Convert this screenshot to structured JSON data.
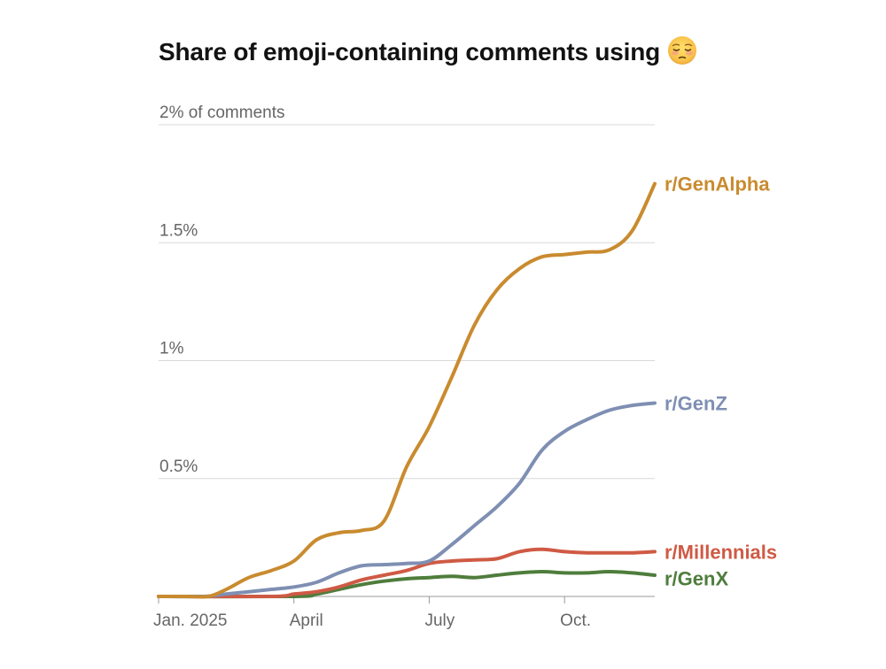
{
  "title": "Share of emoji-containing comments using",
  "title_icon": "pleading-face-emoji",
  "chart_data": {
    "type": "line",
    "title": "Share of emoji-containing comments using",
    "xlabel": "",
    "ylabel": "",
    "x_unit": "months since Jan. 2025",
    "xlim": [
      0,
      11
    ],
    "ylim": [
      0,
      2
    ],
    "y_ticks": [
      {
        "value": 0.5,
        "label": "0.5%"
      },
      {
        "value": 1,
        "label": "1%"
      },
      {
        "value": 1.5,
        "label": "1.5%"
      },
      {
        "value": 2,
        "label": "2% of comments"
      }
    ],
    "x_ticks": [
      {
        "value": 0,
        "label": "Jan. 2025"
      },
      {
        "value": 3,
        "label": "April"
      },
      {
        "value": 6,
        "label": "July"
      },
      {
        "value": 9,
        "label": "Oct."
      }
    ],
    "grid": true,
    "legend": "labels at line ends",
    "series": [
      {
        "name": "r/GenAlpha",
        "color": "#c98b2f",
        "x": [
          0,
          0.6,
          1.1,
          1.5,
          2,
          2.5,
          3,
          3.5,
          4,
          4.5,
          5,
          5.5,
          6,
          6.5,
          7,
          7.5,
          8,
          8.5,
          9,
          9.5,
          10,
          10.5,
          11
        ],
        "y": [
          0,
          0,
          0,
          0.03,
          0.08,
          0.11,
          0.15,
          0.24,
          0.27,
          0.28,
          0.32,
          0.55,
          0.72,
          0.93,
          1.15,
          1.3,
          1.39,
          1.44,
          1.45,
          1.46,
          1.47,
          1.55,
          1.75
        ]
      },
      {
        "name": "r/GenZ",
        "color": "#7f8fb3",
        "x": [
          0,
          1,
          1.5,
          2,
          2.5,
          3,
          3.5,
          4,
          4.5,
          5,
          5.5,
          6,
          6.5,
          7,
          7.5,
          8,
          8.5,
          9,
          9.5,
          10,
          10.5,
          11
        ],
        "y": [
          0,
          0,
          0.01,
          0.02,
          0.03,
          0.04,
          0.06,
          0.1,
          0.13,
          0.135,
          0.14,
          0.15,
          0.22,
          0.3,
          0.38,
          0.48,
          0.62,
          0.7,
          0.75,
          0.79,
          0.81,
          0.82
        ]
      },
      {
        "name": "r/Millennials",
        "color": "#cf5a44",
        "x": [
          0,
          2.5,
          3,
          3.5,
          4,
          4.5,
          5,
          5.5,
          6,
          6.5,
          7,
          7.5,
          8,
          8.5,
          9,
          9.5,
          10,
          10.5,
          11
        ],
        "y": [
          0,
          0,
          0.01,
          0.02,
          0.04,
          0.07,
          0.09,
          0.11,
          0.14,
          0.15,
          0.155,
          0.16,
          0.19,
          0.2,
          0.19,
          0.185,
          0.185,
          0.185,
          0.19
        ]
      },
      {
        "name": "r/GenX",
        "color": "#4f7d3c",
        "x": [
          0,
          3,
          3.5,
          4,
          4.5,
          5,
          5.5,
          6,
          6.5,
          7,
          7.5,
          8,
          8.5,
          9,
          9.5,
          10,
          10.5,
          11
        ],
        "y": [
          0,
          0,
          0.01,
          0.03,
          0.05,
          0.065,
          0.075,
          0.08,
          0.085,
          0.08,
          0.09,
          0.1,
          0.105,
          0.1,
          0.1,
          0.105,
          0.1,
          0.09
        ]
      }
    ]
  }
}
